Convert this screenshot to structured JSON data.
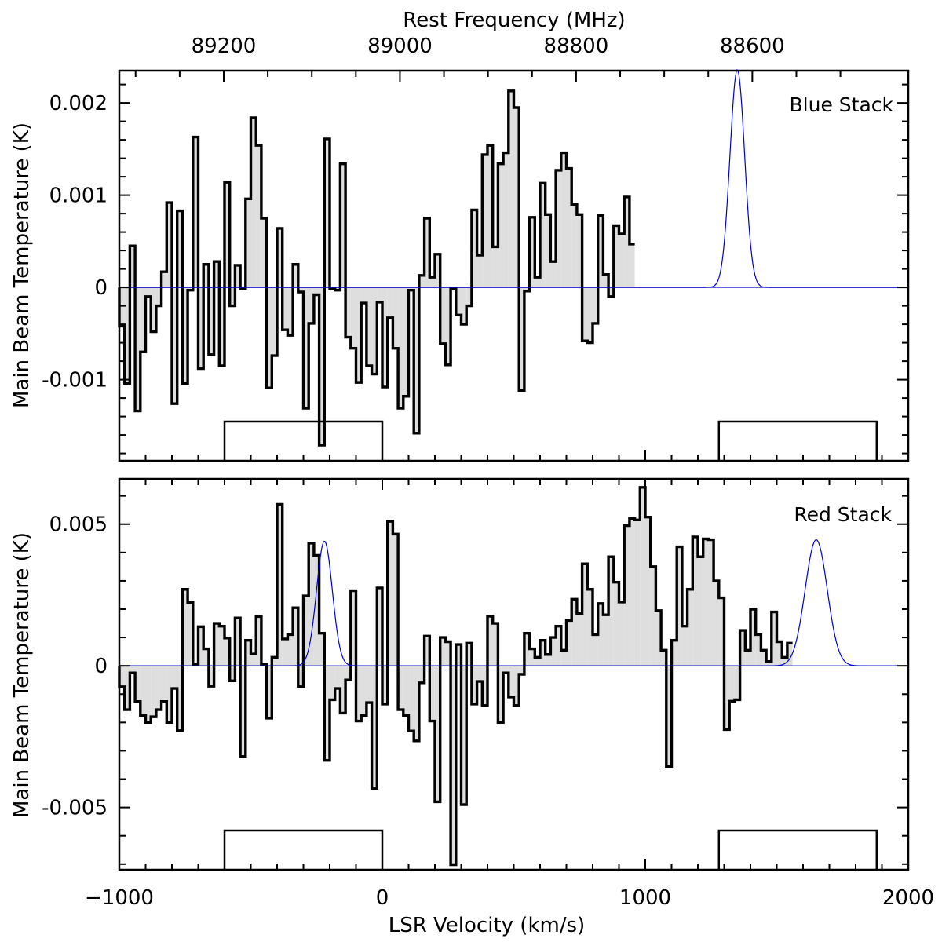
{
  "chart_data": [
    {
      "type": "histogram",
      "panel_label": "Blue Stack",
      "top_axis_title": "Rest Frequency (MHz)",
      "top_tick_labels": [
        "89200",
        "89000",
        "88800",
        "88600"
      ],
      "top_tick_frequencies": [
        89200,
        89000,
        88800,
        88600
      ],
      "rest_freq_zero_velocity_mhz": 89020,
      "mhz_per_kms": 0.2985,
      "xlim": [
        -1000,
        2000
      ],
      "ylim": [
        -0.00188,
        0.00235
      ],
      "yticks": [
        -0.001,
        0,
        0.001,
        0.002
      ],
      "ytick_labels": [
        "-0.001",
        "0",
        "0.001",
        "0.002"
      ],
      "ylabel": "Main Beam Temperature (K)",
      "bin_start": -1000,
      "bin_width": 20,
      "values": [
        -0.00042,
        -0.00104,
        0.00045,
        -0.00134,
        -0.0007,
        -0.0001,
        -0.00048,
        -0.0002,
        0.00017,
        0.00092,
        -0.00126,
        0.00083,
        -0.00104,
        -3e-05,
        0.00163,
        -0.00088,
        0.00025,
        -0.00073,
        0.00028,
        -0.00085,
        0.00114,
        -0.0002,
        0.00024,
        -1e-05,
        0.00096,
        0.00184,
        0.00154,
        0.00075,
        -0.00109,
        -0.00074,
        0.00064,
        -0.00046,
        -0.00052,
        0.00025,
        -5e-05,
        -0.00131,
        -0.00039,
        -8e-05,
        -0.00171,
        0.00161,
        -1e-05,
        -3e-05,
        0.00134,
        -0.00054,
        -0.00066,
        -0.00103,
        -0.00017,
        -0.00085,
        -0.00094,
        -0.00016,
        -0.00108,
        -0.00033,
        -0.00066,
        -0.00131,
        -0.00118,
        -3e-05,
        -0.00158,
        0.00013,
        0.00075,
        0.00011,
        0.00036,
        -0.00061,
        -0.00084,
        -1e-05,
        -0.0003,
        -0.0004,
        -0.0002,
        0.00084,
        0.00035,
        0.00144,
        0.00154,
        0.00044,
        0.00134,
        0.00146,
        0.00213,
        0.00195,
        -0.00112,
        -4e-05,
        0.00076,
        0.00011,
        0.00113,
        0.00079,
        0.00028,
        0.00127,
        0.00146,
        0.00129,
        0.0009,
        0.00079,
        -0.00058,
        -0.0006,
        -0.00039,
        0.00078,
        0.00014,
        -0.0001,
        0.00067,
        0.00058,
        0.00098,
        0.00047
      ],
      "gaussian_fit": {
        "amplitude": 0.00236,
        "center_kms": 1350,
        "sigma_kms": 28,
        "color": "#0000cc"
      },
      "line_windows_kms": [
        [
          -600,
          0
        ],
        [
          1280,
          1880
        ]
      ],
      "fill_color": "#dedede"
    },
    {
      "type": "histogram",
      "panel_label": "Red Stack",
      "xlabel": "LSR Velocity (km/s)",
      "xlim": [
        -1000,
        2000
      ],
      "xticks": [
        -1000,
        0,
        1000,
        2000
      ],
      "xtick_labels": [
        "−1000",
        "0",
        "1000",
        "2000"
      ],
      "ylim": [
        -0.0072,
        0.0066
      ],
      "yticks": [
        -0.005,
        0,
        0.005
      ],
      "ytick_labels": [
        "-0.005",
        "0",
        "0.005"
      ],
      "ylabel": "Main Beam Temperature (K)",
      "bin_start": -1000,
      "bin_width": 20,
      "values": [
        -0.00074,
        -0.00155,
        -0.00025,
        -0.00126,
        -0.00175,
        -0.002,
        -0.0018,
        -0.00155,
        -0.00126,
        -0.002,
        -0.0008,
        -0.00229,
        0.0027,
        0.00224,
        5e-05,
        0.00138,
        0.0006,
        -0.00072,
        0.0015,
        0.0014,
        0.00098,
        -0.00053,
        0.00169,
        -0.0032,
        0.0009,
        0.00042,
        0.00174,
        5e-05,
        -0.00185,
        0.0003,
        0.0057,
        0.00095,
        0.0011,
        0.00205,
        -0.00073,
        0.00247,
        0.00433,
        0.0039,
        0.00115,
        -0.00334,
        -0.0012,
        -0.0008,
        -0.00167,
        -0.0005,
        0.00265,
        -0.00195,
        -0.00175,
        -0.0013,
        -0.00433,
        0.00275,
        -0.00135,
        0.0051,
        0.00465,
        -0.00155,
        -0.00175,
        -0.0023,
        -0.00265,
        -0.0006,
        0.00105,
        -0.00195,
        -0.0048,
        0.001,
        0.00085,
        -0.00702,
        0.00075,
        -0.0049,
        0.0008,
        -0.00135,
        -0.00055,
        -0.0014,
        0.00175,
        0.0015,
        -0.002,
        -0.00025,
        -0.0011,
        -0.0014,
        -0.0003,
        0.00115,
        0.0006,
        0.0003,
        0.0009,
        0.0004,
        0.001,
        0.0014,
        0.00055,
        0.0016,
        0.00235,
        0.00185,
        0.0036,
        0.0027,
        0.0011,
        0.0022,
        0.0018,
        0.00385,
        0.00295,
        0.00225,
        0.00495,
        0.0052,
        0.00515,
        0.0063,
        0.00525,
        0.0035,
        0.00195,
        0.00055,
        -0.00355,
        0.0009,
        0.0042,
        0.0014,
        0.0027,
        0.00455,
        0.00385,
        0.00448,
        0.00445,
        0.003,
        0.0024,
        -0.00225,
        -0.00125,
        -0.0012,
        0.00125,
        0.00055,
        0.002,
        0.0011,
        0.00055,
        0.00015,
        0.0019,
        0.00085,
        0.0003,
        0.0008
      ],
      "gaussian_fits": [
        {
          "amplitude": 0.0044,
          "center_kms": -220,
          "sigma_kms": 30,
          "color": "#0000cc"
        },
        {
          "amplitude": 0.00445,
          "center_kms": 1650,
          "sigma_kms": 42,
          "color": "#0000cc"
        }
      ],
      "line_windows_kms": [
        [
          -600,
          0
        ],
        [
          1280,
          1880
        ]
      ],
      "fill_color": "#dedede"
    }
  ]
}
